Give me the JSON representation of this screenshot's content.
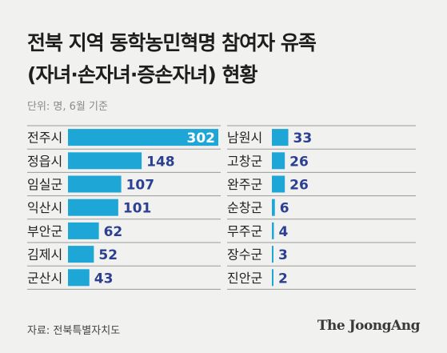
{
  "title_line1": "전북 지역 동학농민혁명 참여자 유족",
  "title_line2": "(자녀·손자녀·증손자녀) 현황",
  "unit_note": "단위: 명, 6월 기준",
  "source": "자료: 전북특별자치도",
  "brand": "The JoongAng",
  "colors": {
    "bar": "#1ea7d6",
    "value": "#2b3f93",
    "value_inside": "#ffffff",
    "divider": "#9a9a9a"
  },
  "chart_data": [
    {
      "type": "bar",
      "orientation": "horizontal",
      "categories": [
        "전주시",
        "정읍시",
        "임실군",
        "익산시",
        "부안군",
        "김제시",
        "군산시"
      ],
      "values": [
        302,
        148,
        107,
        101,
        62,
        52,
        43
      ]
    },
    {
      "type": "bar",
      "orientation": "horizontal",
      "categories": [
        "남원시",
        "고창군",
        "완주군",
        "순창군",
        "무주군",
        "장수군",
        "진안군"
      ],
      "values": [
        33,
        26,
        26,
        6,
        4,
        3,
        2
      ]
    }
  ]
}
